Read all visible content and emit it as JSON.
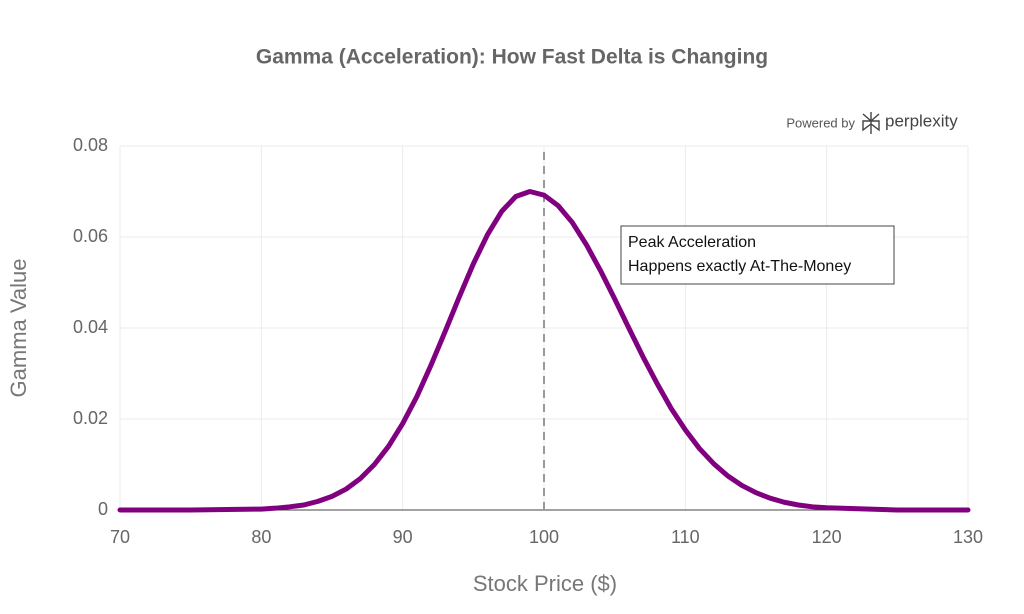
{
  "chart_data": {
    "type": "line",
    "title": "Gamma (Acceleration): How Fast Delta is Changing",
    "x_label": "Stock Price ($)",
    "y_label": "Gamma Value",
    "x": [
      70,
      75,
      80,
      81,
      82,
      83,
      84,
      85,
      86,
      87,
      88,
      89,
      90,
      91,
      92,
      93,
      94,
      95,
      96,
      97,
      98,
      99,
      100,
      101,
      102,
      103,
      104,
      105,
      106,
      107,
      108,
      109,
      110,
      111,
      112,
      113,
      114,
      115,
      116,
      117,
      118,
      119,
      120,
      125,
      130
    ],
    "series": [
      {
        "color": "#800080",
        "values": [
          0,
          0,
          0.0002,
          0.0004,
          0.0007,
          0.0011,
          0.0019,
          0.003,
          0.0046,
          0.0069,
          0.01,
          0.014,
          0.019,
          0.0249,
          0.0318,
          0.0392,
          0.0468,
          0.0541,
          0.0605,
          0.0656,
          0.0689,
          0.07,
          0.0692,
          0.0669,
          0.0632,
          0.0583,
          0.0526,
          0.0464,
          0.04,
          0.0337,
          0.0278,
          0.0223,
          0.0176,
          0.0135,
          0.0102,
          0.0075,
          0.0054,
          0.0038,
          0.0026,
          0.0017,
          0.0011,
          0.0007,
          0.0005,
          0,
          0
        ]
      }
    ],
    "xlim": [
      70,
      130
    ],
    "xticks": [
      70,
      80,
      90,
      100,
      110,
      120,
      130
    ],
    "ylim": [
      0,
      0.08
    ],
    "yticks": [
      0,
      0.02,
      0.04,
      0.06,
      0.08
    ],
    "grid": true,
    "vline": 100,
    "annotation": [
      "Peak Acceleration",
      "Happens exactly At-The-Money"
    ],
    "watermark": [
      "Powered by",
      "perplexity"
    ]
  }
}
